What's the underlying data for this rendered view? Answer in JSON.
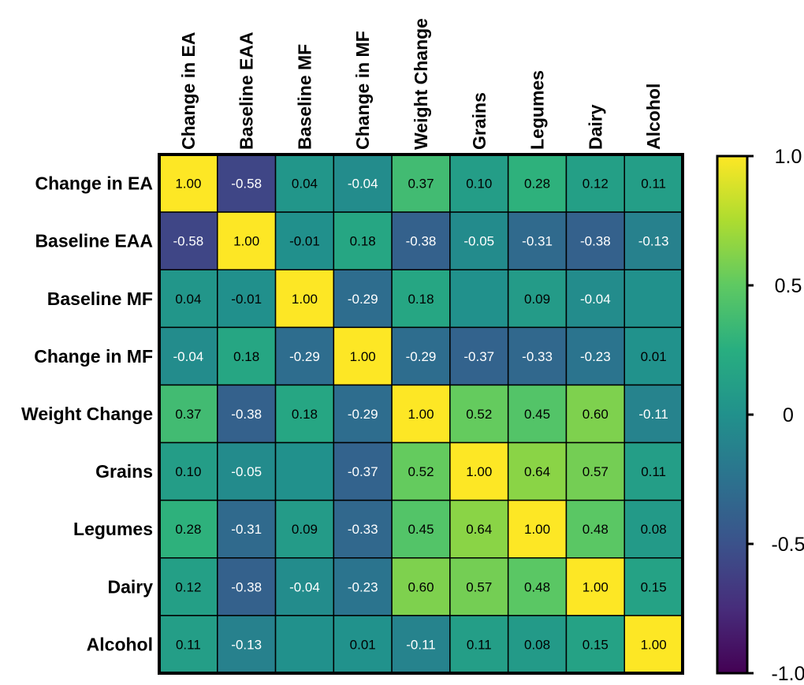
{
  "chart_data": {
    "type": "heatmap",
    "title": "",
    "xlabel": "",
    "ylabel": "",
    "variables": [
      "Change in EA",
      "Baseline EAA",
      "Baseline MF",
      "Change in MF",
      "Weight Change",
      "Grains",
      "Legumes",
      "Dairy",
      "Alcohol"
    ],
    "matrix": [
      [
        "1.00",
        "-0.58",
        "0.04",
        "-0.04",
        "0.37",
        "0.10",
        "0.28",
        "0.12",
        "0.11"
      ],
      [
        "-0.58",
        "1.00",
        "-0.01",
        "0.18",
        "-0.38",
        "-0.05",
        "-0.31",
        "-0.38",
        "-0.13"
      ],
      [
        "0.04",
        "-0.01",
        "1.00",
        "-0.29",
        "0.18",
        "",
        "0.09",
        "-0.04",
        ""
      ],
      [
        "-0.04",
        "0.18",
        "-0.29",
        "1.00",
        "-0.29",
        "-0.37",
        "-0.33",
        "-0.23",
        "0.01"
      ],
      [
        "0.37",
        "-0.38",
        "0.18",
        "-0.29",
        "1.00",
        "0.52",
        "0.45",
        "0.60",
        "-0.11"
      ],
      [
        "0.10",
        "-0.05",
        "",
        "-0.37",
        "0.52",
        "1.00",
        "0.64",
        "0.57",
        "0.11"
      ],
      [
        "0.28",
        "-0.31",
        "0.09",
        "-0.33",
        "0.45",
        "0.64",
        "1.00",
        "0.48",
        "0.08"
      ],
      [
        "0.12",
        "-0.38",
        "-0.04",
        "-0.23",
        "0.60",
        "0.57",
        "0.48",
        "1.00",
        "0.15"
      ],
      [
        "0.11",
        "-0.13",
        "",
        "0.01",
        "-0.11",
        "0.11",
        "0.08",
        "0.15",
        "1.00"
      ]
    ],
    "colorscale": "viridis",
    "zlim": [
      -1.0,
      1.0
    ],
    "colorbar": {
      "ticks": [
        1.0,
        0.5,
        0,
        -0.5,
        -1.0
      ],
      "tick_labels": [
        "1.0",
        "0.5",
        "0",
        "-0.5",
        "-1.0"
      ],
      "placement": "right"
    }
  }
}
